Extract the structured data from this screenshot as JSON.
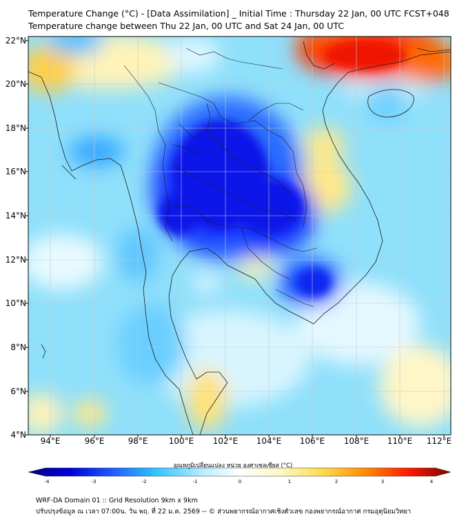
{
  "header": {
    "title_line1": "Temperature Change (°C) - [Data Assimilation] _ Initial Time : Thursday 22 Jan, 00 UTC FCST+048",
    "title_line2": "Temperature change between Thu 22 Jan, 00 UTC and Sat 24 Jan, 00 UTC"
  },
  "map": {
    "lat_labels": [
      "22°N",
      "20°N",
      "18°N",
      "16°N",
      "14°N",
      "12°N",
      "10°N",
      "8°N",
      "6°N",
      "4°N"
    ],
    "lon_labels": [
      "94°E",
      "96°E",
      "98°E",
      "100°E",
      "102°E",
      "104°E",
      "106°E",
      "108°E",
      "110°E",
      "112°E"
    ],
    "grid": true
  },
  "colorbar": {
    "title": "อุณหภูมิเปลี่ยนแปลง หน่วย องศาเซลเซียส (°C)",
    "ticks": [
      "-4",
      "-3",
      "-2",
      "-1",
      "0",
      "1",
      "2",
      "3",
      "4"
    ],
    "range": [
      -4,
      4
    ],
    "colors": [
      "#00007a",
      "#0000dd",
      "#1e5cff",
      "#2ec3ff",
      "#bfefff",
      "#ffffff",
      "#fff7c0",
      "#ffd84a",
      "#ff8a00",
      "#ff1a00",
      "#7a0000"
    ]
  },
  "footer": {
    "line1": "WRF-DA Domain 01 :: Grid Resolution 9km x 9km",
    "line2": "ปรับปรุงข้อมูล ณ เวลา 07:00น. วัน พฤ. ที่ 22 ม.ค. 2569 -- © ส่วนพยากรณ์อากาศเชิงตัวเลข กองพยากรณ์อากาศ กรมอุตุนิยมวิทยา"
  }
}
